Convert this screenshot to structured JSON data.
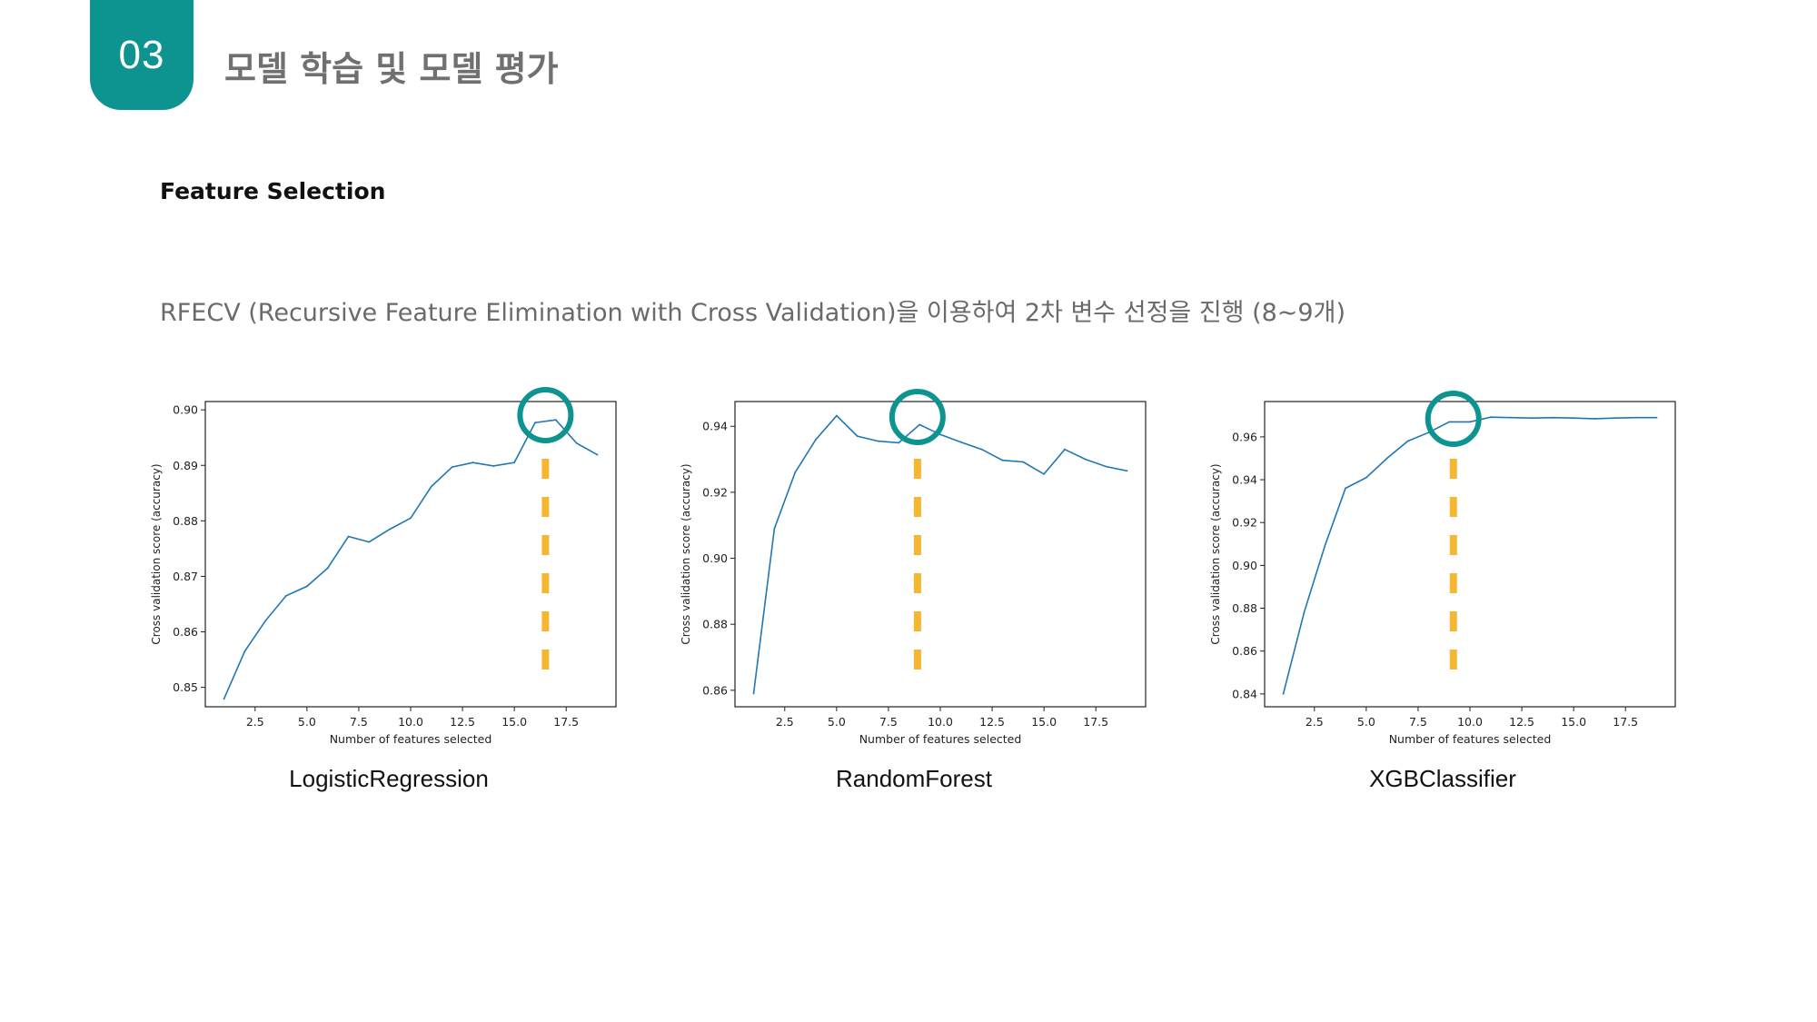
{
  "header": {
    "section_number": "03",
    "title": "모델 학습 및 모델 평가"
  },
  "section": {
    "subtitle": "Feature Selection",
    "description": "RFECV (Recursive Feature Elimination with Cross Validation)을 이용하여 2차 변수 선정을 진행 (8~9개)"
  },
  "colors": {
    "accent": "#0e9490",
    "line": "#1f77b4",
    "marker": "#f5b731"
  },
  "chart_data": [
    {
      "type": "line",
      "model_label": "LogisticRegression",
      "xlabel": "Number of features selected",
      "ylabel": "Cross validation score (accuracy)",
      "xlim": [
        0.1,
        19.9
      ],
      "ylim": [
        0.8465,
        0.9015
      ],
      "xticks": [
        2.5,
        5.0,
        7.5,
        10.0,
        12.5,
        15.0,
        17.5
      ],
      "xtick_labels": [
        "2.5",
        "5.0",
        "7.5",
        "10.0",
        "12.5",
        "15.0",
        "17.5"
      ],
      "yticks": [
        0.85,
        0.86,
        0.87,
        0.88,
        0.89,
        0.9
      ],
      "ytick_labels": [
        "0.85",
        "0.86",
        "0.87",
        "0.88",
        "0.89",
        "0.90"
      ],
      "x": [
        1,
        2,
        3,
        4,
        5,
        6,
        7,
        8,
        9,
        10,
        11,
        12,
        13,
        14,
        15,
        16,
        17,
        18,
        19
      ],
      "y": [
        0.8479,
        0.8565,
        0.862,
        0.8665,
        0.8682,
        0.8715,
        0.8772,
        0.8762,
        0.8785,
        0.8805,
        0.8862,
        0.8897,
        0.8905,
        0.8899,
        0.8905,
        0.8977,
        0.8982,
        0.894,
        0.8919
      ],
      "highlight_x": 16.5
    },
    {
      "type": "line",
      "model_label": "RandomForest",
      "xlabel": "Number of features selected",
      "ylabel": "Cross validation score (accuracy)",
      "xlim": [
        0.1,
        19.9
      ],
      "ylim": [
        0.855,
        0.9475
      ],
      "xticks": [
        2.5,
        5.0,
        7.5,
        10.0,
        12.5,
        15.0,
        17.5
      ],
      "xtick_labels": [
        "2.5",
        "5.0",
        "7.5",
        "10.0",
        "12.5",
        "15.0",
        "17.5"
      ],
      "yticks": [
        0.86,
        0.88,
        0.9,
        0.92,
        0.94
      ],
      "ytick_labels": [
        "0.86",
        "0.88",
        "0.90",
        "0.92",
        "0.94"
      ],
      "x": [
        1,
        2,
        3,
        4,
        5,
        6,
        7,
        8,
        9,
        10,
        11,
        12,
        13,
        14,
        15,
        16,
        17,
        18,
        19
      ],
      "y": [
        0.859,
        0.909,
        0.926,
        0.936,
        0.9432,
        0.937,
        0.9355,
        0.935,
        0.9405,
        0.9375,
        0.9352,
        0.933,
        0.9297,
        0.9292,
        0.9255,
        0.933,
        0.93,
        0.9278,
        0.9265
      ],
      "highlight_x": 8.9
    },
    {
      "type": "line",
      "model_label": "XGBClassifier",
      "xlabel": "Number of features selected",
      "ylabel": "Cross validation score (accuracy)",
      "xlim": [
        0.1,
        19.9
      ],
      "ylim": [
        0.834,
        0.9765
      ],
      "xticks": [
        2.5,
        5.0,
        7.5,
        10.0,
        12.5,
        15.0,
        17.5
      ],
      "xtick_labels": [
        "2.5",
        "5.0",
        "7.5",
        "10.0",
        "12.5",
        "15.0",
        "17.5"
      ],
      "yticks": [
        0.84,
        0.86,
        0.88,
        0.9,
        0.92,
        0.94,
        0.96
      ],
      "ytick_labels": [
        "0.84",
        "0.86",
        "0.88",
        "0.90",
        "0.92",
        "0.94",
        "0.96"
      ],
      "x": [
        1,
        2,
        3,
        4,
        5,
        6,
        7,
        8,
        9,
        10,
        11,
        12,
        13,
        14,
        15,
        16,
        17,
        18,
        19
      ],
      "y": [
        0.84,
        0.878,
        0.909,
        0.936,
        0.941,
        0.95,
        0.958,
        0.962,
        0.967,
        0.967,
        0.9692,
        0.969,
        0.9688,
        0.969,
        0.9688,
        0.9685,
        0.9688,
        0.969,
        0.969
      ],
      "highlight_x": 9.2
    }
  ]
}
